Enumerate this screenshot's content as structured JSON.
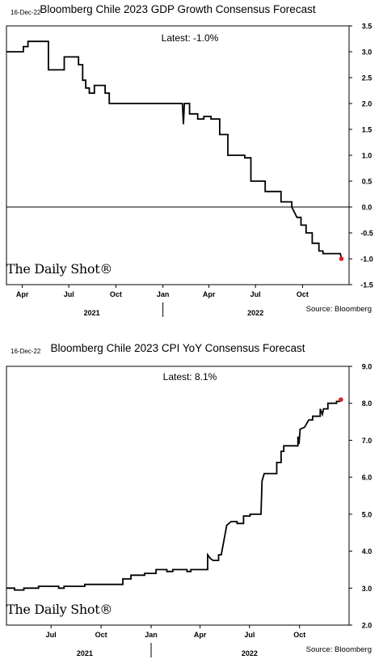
{
  "chart_data": [
    {
      "type": "line",
      "date_stamp": "16-Dec-22",
      "title": "Bloomberg Chile 2023 GDP Growth Consensus Forecast",
      "annotation": "Latest:  -1.0%",
      "logo": "The Daily Shot®",
      "source": "Source: Bloomberg",
      "xlim": [
        "2021-03-01",
        "2022-12-31"
      ],
      "ylim": [
        -1.5,
        3.5
      ],
      "yticks": [
        "3.5",
        "3.0",
        "2.5",
        "2.0",
        "1.5",
        "1.0",
        "0.5",
        "0.0",
        "-0.5",
        "-1.0",
        "-1.5"
      ],
      "xtick_labels": [
        {
          "date": "2021-04-01",
          "label": "Apr"
        },
        {
          "date": "2021-07-01",
          "label": "Jul"
        },
        {
          "date": "2021-10-01",
          "label": "Oct"
        },
        {
          "date": "2022-01-01",
          "label": "Jan"
        },
        {
          "date": "2022-04-01",
          "label": "Apr"
        },
        {
          "date": "2022-07-01",
          "label": "Jul"
        },
        {
          "date": "2022-10-01",
          "label": "Oct"
        }
      ],
      "years": [
        {
          "date": "2021-08-15",
          "label": "2021"
        },
        {
          "date": "2022-07-01",
          "label": "2022"
        }
      ],
      "zero_line": true,
      "line_color": "#000000",
      "latest_marker_color": "#e02020",
      "series": [
        {
          "values": [
            [
              "2021-03-01",
              3.0
            ],
            [
              "2021-04-03",
              3.0
            ],
            [
              "2021-04-03",
              3.1
            ],
            [
              "2021-04-12",
              3.1
            ],
            [
              "2021-04-12",
              3.2
            ],
            [
              "2021-05-22",
              3.2
            ],
            [
              "2021-05-22",
              2.65
            ],
            [
              "2021-06-22",
              2.65
            ],
            [
              "2021-06-22",
              2.9
            ],
            [
              "2021-07-20",
              2.9
            ],
            [
              "2021-07-20",
              2.75
            ],
            [
              "2021-07-28",
              2.75
            ],
            [
              "2021-07-28",
              2.45
            ],
            [
              "2021-08-03",
              2.45
            ],
            [
              "2021-08-03",
              2.3
            ],
            [
              "2021-08-10",
              2.3
            ],
            [
              "2021-08-10",
              2.2
            ],
            [
              "2021-08-20",
              2.2
            ],
            [
              "2021-08-20",
              2.35
            ],
            [
              "2021-09-10",
              2.35
            ],
            [
              "2021-09-10",
              2.2
            ],
            [
              "2021-09-18",
              2.2
            ],
            [
              "2021-09-18",
              2.0
            ],
            [
              "2022-02-08",
              2.0
            ],
            [
              "2022-02-10",
              1.6
            ],
            [
              "2022-02-12",
              2.0
            ],
            [
              "2022-02-22",
              2.0
            ],
            [
              "2022-02-22",
              1.8
            ],
            [
              "2022-03-10",
              1.8
            ],
            [
              "2022-03-10",
              1.7
            ],
            [
              "2022-03-22",
              1.7
            ],
            [
              "2022-03-22",
              1.75
            ],
            [
              "2022-04-05",
              1.75
            ],
            [
              "2022-04-05",
              1.7
            ],
            [
              "2022-04-22",
              1.7
            ],
            [
              "2022-04-22",
              1.4
            ],
            [
              "2022-05-08",
              1.4
            ],
            [
              "2022-05-08",
              1.0
            ],
            [
              "2022-06-10",
              1.0
            ],
            [
              "2022-06-10",
              0.95
            ],
            [
              "2022-06-22",
              0.95
            ],
            [
              "2022-06-22",
              0.5
            ],
            [
              "2022-07-20",
              0.5
            ],
            [
              "2022-07-20",
              0.3
            ],
            [
              "2022-08-20",
              0.3
            ],
            [
              "2022-08-20",
              0.1
            ],
            [
              "2022-09-10",
              0.1
            ],
            [
              "2022-09-10",
              0.0
            ],
            [
              "2022-09-20",
              -0.2
            ],
            [
              "2022-09-28",
              -0.2
            ],
            [
              "2022-09-28",
              -0.35
            ],
            [
              "2022-10-08",
              -0.35
            ],
            [
              "2022-10-08",
              -0.5
            ],
            [
              "2022-10-20",
              -0.5
            ],
            [
              "2022-10-20",
              -0.7
            ],
            [
              "2022-11-02",
              -0.7
            ],
            [
              "2022-11-02",
              -0.85
            ],
            [
              "2022-11-10",
              -0.85
            ],
            [
              "2022-11-10",
              -0.9
            ],
            [
              "2022-12-14",
              -0.9
            ],
            [
              "2022-12-16",
              -1.0
            ]
          ]
        }
      ]
    },
    {
      "type": "line",
      "date_stamp": "16-Dec-22",
      "title": "Bloomberg Chile 2023 CPI YoY Consensus Forecast",
      "annotation": "Latest:  8.1%",
      "logo": "The Daily Shot®",
      "source": "Source: Bloomberg",
      "xlim": [
        "2021-04-10",
        "2022-12-31"
      ],
      "ylim": [
        2.0,
        9.0
      ],
      "yticks": [
        "9.0",
        "8.0",
        "7.0",
        "6.0",
        "5.0",
        "4.0",
        "3.0",
        "2.0"
      ],
      "xtick_labels": [
        {
          "date": "2021-07-01",
          "label": "Jul"
        },
        {
          "date": "2021-10-01",
          "label": "Oct"
        },
        {
          "date": "2022-01-01",
          "label": "Jan"
        },
        {
          "date": "2022-04-01",
          "label": "Apr"
        },
        {
          "date": "2022-07-01",
          "label": "Jul"
        },
        {
          "date": "2022-10-01",
          "label": "Oct"
        }
      ],
      "years": [
        {
          "date": "2021-09-01",
          "label": "2021"
        },
        {
          "date": "2022-07-01",
          "label": "2022"
        }
      ],
      "zero_line": false,
      "line_color": "#000000",
      "latest_marker_color": "#e02020",
      "series": [
        {
          "values": [
            [
              "2021-04-10",
              3.0
            ],
            [
              "2021-04-25",
              3.0
            ],
            [
              "2021-04-25",
              2.95
            ],
            [
              "2021-05-12",
              2.95
            ],
            [
              "2021-05-12",
              3.0
            ],
            [
              "2021-06-08",
              3.0
            ],
            [
              "2021-06-08",
              3.05
            ],
            [
              "2021-07-15",
              3.05
            ],
            [
              "2021-07-15",
              3.0
            ],
            [
              "2021-07-25",
              3.0
            ],
            [
              "2021-07-25",
              3.05
            ],
            [
              "2021-09-01",
              3.05
            ],
            [
              "2021-09-01",
              3.1
            ],
            [
              "2021-11-10",
              3.1
            ],
            [
              "2021-11-10",
              3.25
            ],
            [
              "2021-11-25",
              3.25
            ],
            [
              "2021-11-25",
              3.35
            ],
            [
              "2021-12-20",
              3.35
            ],
            [
              "2021-12-20",
              3.4
            ],
            [
              "2022-01-10",
              3.4
            ],
            [
              "2022-01-10",
              3.5
            ],
            [
              "2022-01-30",
              3.5
            ],
            [
              "2022-01-30",
              3.45
            ],
            [
              "2022-02-10",
              3.45
            ],
            [
              "2022-02-10",
              3.5
            ],
            [
              "2022-03-08",
              3.5
            ],
            [
              "2022-03-08",
              3.45
            ],
            [
              "2022-03-15",
              3.45
            ],
            [
              "2022-03-15",
              3.5
            ],
            [
              "2022-04-15",
              3.5
            ],
            [
              "2022-04-15",
              3.9
            ],
            [
              "2022-04-20",
              3.8
            ],
            [
              "2022-04-25",
              3.75
            ],
            [
              "2022-05-05",
              3.75
            ],
            [
              "2022-05-05",
              3.9
            ],
            [
              "2022-05-10",
              3.9
            ],
            [
              "2022-05-15",
              4.3
            ],
            [
              "2022-05-20",
              4.7
            ],
            [
              "2022-05-28",
              4.8
            ],
            [
              "2022-06-08",
              4.8
            ],
            [
              "2022-06-08",
              4.75
            ],
            [
              "2022-06-20",
              4.75
            ],
            [
              "2022-06-20",
              4.95
            ],
            [
              "2022-07-02",
              4.95
            ],
            [
              "2022-07-02",
              5.0
            ],
            [
              "2022-07-22",
              5.0
            ],
            [
              "2022-07-24",
              5.9
            ],
            [
              "2022-07-28",
              6.1
            ],
            [
              "2022-08-20",
              6.1
            ],
            [
              "2022-08-20",
              6.4
            ],
            [
              "2022-08-28",
              6.4
            ],
            [
              "2022-08-28",
              6.7
            ],
            [
              "2022-09-02",
              6.7
            ],
            [
              "2022-09-02",
              6.85
            ],
            [
              "2022-09-28",
              6.85
            ],
            [
              "2022-09-28",
              7.1
            ],
            [
              "2022-09-30",
              6.9
            ],
            [
              "2022-10-02",
              7.3
            ],
            [
              "2022-10-10",
              7.35
            ],
            [
              "2022-10-18",
              7.55
            ],
            [
              "2022-10-25",
              7.55
            ],
            [
              "2022-10-25",
              7.65
            ],
            [
              "2022-11-08",
              7.65
            ],
            [
              "2022-11-08",
              7.85
            ],
            [
              "2022-11-12",
              7.7
            ],
            [
              "2022-11-14",
              7.85
            ],
            [
              "2022-11-22",
              7.85
            ],
            [
              "2022-11-22",
              8.0
            ],
            [
              "2022-12-08",
              8.0
            ],
            [
              "2022-12-08",
              8.05
            ],
            [
              "2022-12-14",
              8.05
            ],
            [
              "2022-12-16",
              8.1
            ]
          ]
        }
      ]
    }
  ]
}
